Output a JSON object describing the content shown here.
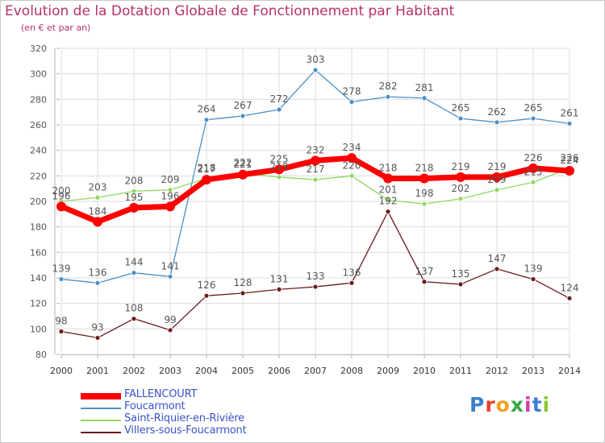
{
  "title": "Evolution de la Dotation Globale de Fonctionnement par Habitant",
  "subtitle": "(en € et par an)",
  "logo_text": "Proxiti",
  "colors": {
    "title": "#b5316c",
    "legend_text": "#3a52c9",
    "axis": "#b0b0b0",
    "grid": "#dcdcdc",
    "label": "#555555"
  },
  "chart_data": {
    "type": "line",
    "x": [
      2000,
      2001,
      2002,
      2003,
      2004,
      2005,
      2006,
      2007,
      2008,
      2009,
      2010,
      2011,
      2012,
      2013,
      2014
    ],
    "ylim": [
      80,
      320
    ],
    "yticks": [
      80,
      100,
      120,
      140,
      160,
      180,
      200,
      220,
      240,
      260,
      280,
      300,
      320
    ],
    "grid": true,
    "legend_position": "bottom-left",
    "series": [
      {
        "name": "FALLENCOURT",
        "color": "#ff0000",
        "values": [
          196,
          184,
          195,
          196,
          217,
          221,
          225,
          232,
          234,
          218,
          218,
          219,
          219,
          226,
          224
        ]
      },
      {
        "name": "Foucarmont",
        "color": "#4a90c8",
        "values": [
          139,
          136,
          144,
          141,
          264,
          267,
          272,
          303,
          278,
          282,
          281,
          265,
          262,
          265,
          261
        ]
      },
      {
        "name": "Saint-Riquier-en-Rivière",
        "color": "#90d860",
        "values": [
          200,
          203,
          208,
          209,
          218,
          222,
          219,
          217,
          220,
          201,
          198,
          202,
          209,
          215,
          226
        ]
      },
      {
        "name": "Villers-sous-Foucarmont",
        "color": "#6b1a1a",
        "values": [
          98,
          93,
          108,
          99,
          126,
          128,
          131,
          133,
          136,
          192,
          137,
          135,
          147,
          139,
          124
        ]
      }
    ]
  }
}
